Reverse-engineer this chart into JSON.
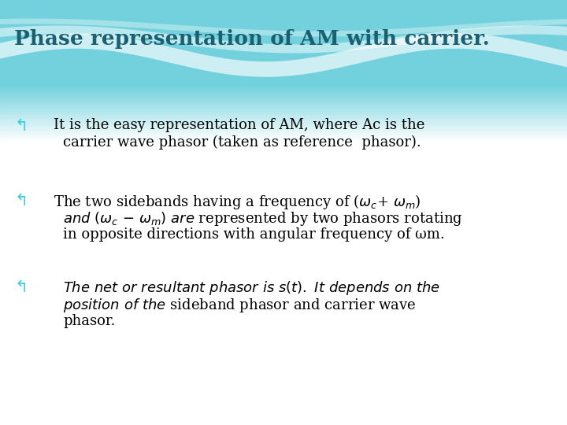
{
  "title": "Phase representation of AM with carrier.",
  "title_color": "#1a6070",
  "title_fontsize": 19,
  "bg_teal": [
    0.45,
    0.82,
    0.87
  ],
  "bg_mid": [
    0.72,
    0.92,
    0.95
  ],
  "bullet_color": "#3ecfdf",
  "text_color": "#000000",
  "text_fontsize": 13.0,
  "bullet1_l1": "It is the easy representation of AM, where Ac is the",
  "bullet1_l2": "carrier wave phasor (taken as reference  phasor).",
  "bullet2_l1": "The two sidebands having a frequency of (ω",
  "bullet2_l2_italic": "and (ω",
  "bullet2_l2_rest": ") are represented by two phasors rotating",
  "bullet2_l3": "in opposite directions with angular frequency of ωm.",
  "bullet3_l1_italic": "The net or resultant phasor is s(t). It depends on the",
  "bullet3_l2_italic": "position of the",
  "bullet3_l2_rest": " sideband phasor and carrier wave",
  "bullet3_l3": "phasor."
}
